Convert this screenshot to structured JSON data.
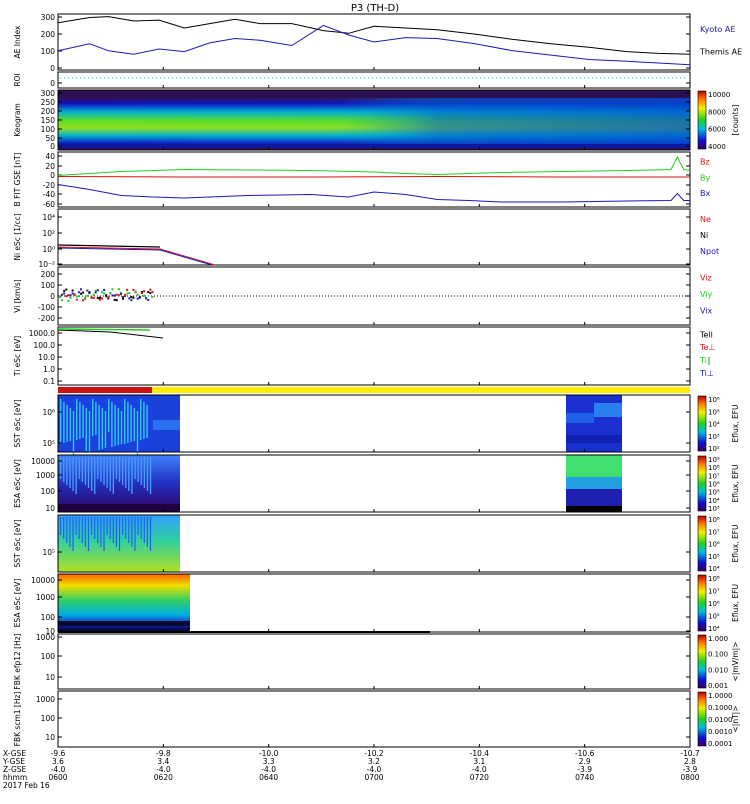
{
  "title": "P3 (TH-D)",
  "colors": {
    "black": "#000000",
    "blue": "#1a1ab8",
    "green": "#22cc22",
    "red": "#dd1111",
    "yellow": "#ffee00",
    "dkred": "#cc1111"
  },
  "chart_data": {
    "type": "line",
    "panels": [
      {
        "id": "ae",
        "ylabel": "AE Index",
        "yticks": [
          "0",
          "100",
          "200",
          "300"
        ],
        "ylim": [
          0,
          320
        ],
        "legend": [
          {
            "name": "Kyoto AE",
            "color": "#1a1ab8"
          },
          {
            "name": "Themis AE",
            "color": "#000000"
          }
        ],
        "series": [
          {
            "name": "Themis AE",
            "color": "#000000",
            "x": [
              0,
              0.05,
              0.08,
              0.12,
              0.16,
              0.2,
              0.24,
              0.28,
              0.32,
              0.37,
              0.42,
              0.46,
              0.5,
              0.55,
              0.6,
              0.66,
              0.72,
              0.78,
              0.84,
              0.9,
              0.95,
              1.0
            ],
            "y": [
              270,
              300,
              305,
              280,
              285,
              240,
              265,
              290,
              265,
              265,
              225,
              210,
              250,
              240,
              230,
              205,
              175,
              150,
              130,
              105,
              95,
              90
            ]
          },
          {
            "name": "Kyoto AE",
            "color": "#1a1ab8",
            "x": [
              0,
              0.05,
              0.08,
              0.12,
              0.16,
              0.2,
              0.24,
              0.28,
              0.32,
              0.37,
              0.42,
              0.46,
              0.5,
              0.55,
              0.6,
              0.66,
              0.72,
              0.78,
              0.84,
              0.9,
              0.95,
              1.0
            ],
            "y": [
              110,
              150,
              110,
              90,
              120,
              105,
              155,
              180,
              170,
              140,
              255,
              200,
              160,
              185,
              180,
              150,
              110,
              85,
              60,
              50,
              40,
              30
            ]
          }
        ]
      },
      {
        "id": "roi",
        "ylabel": "ROI",
        "yticks": [
          "0"
        ]
      },
      {
        "id": "keogram",
        "ylabel": "Keogram",
        "yticks": [
          "0",
          "50",
          "100",
          "150",
          "200",
          "250",
          "300"
        ],
        "colorbar": {
          "ticks": [
            "4000",
            "6000",
            "8000",
            "10000"
          ],
          "label": "[counts]"
        }
      },
      {
        "id": "bfield",
        "ylabel": "B FIT GSE [nT]",
        "yticks": [
          "-60",
          "-40",
          "-20",
          "0",
          "20",
          "40"
        ],
        "ylim": [
          -65,
          45
        ],
        "legend": [
          {
            "name": "Bz",
            "color": "#dd1111"
          },
          {
            "name": "By",
            "color": "#22cc22"
          },
          {
            "name": "Bx",
            "color": "#1a1ab8"
          }
        ],
        "series": [
          {
            "name": "By",
            "color": "#22cc22",
            "x": [
              0,
              0.1,
              0.2,
              0.3,
              0.4,
              0.5,
              0.55,
              0.6,
              0.7,
              0.8,
              0.9,
              0.97,
              0.98,
              0.99,
              1.0
            ],
            "y": [
              -2,
              6,
              10,
              9,
              8,
              5,
              2,
              0,
              4,
              6,
              8,
              10,
              35,
              10,
              8
            ]
          },
          {
            "name": "Bz",
            "color": "#dd1111",
            "x": [
              0,
              0.2,
              0.4,
              0.6,
              0.8,
              1.0
            ],
            "y": [
              -4,
              -5,
              -5,
              -4,
              -5,
              -5
            ]
          },
          {
            "name": "Bx",
            "color": "#1a1ab8",
            "x": [
              0,
              0.05,
              0.1,
              0.15,
              0.2,
              0.3,
              0.4,
              0.46,
              0.5,
              0.55,
              0.6,
              0.65,
              0.7,
              0.8,
              0.9,
              0.97,
              0.98,
              0.99,
              1.0
            ],
            "y": [
              -20,
              -30,
              -42,
              -45,
              -47,
              -42,
              -40,
              -45,
              -35,
              -40,
              -50,
              -52,
              -55,
              -55,
              -53,
              -52,
              -38,
              -52,
              -52
            ]
          }
        ]
      },
      {
        "id": "density",
        "ylabel": "Ni eSc [1/cc]",
        "yticks": [
          "10⁻²",
          "10⁰",
          "10²",
          "10⁴"
        ],
        "legend": [
          {
            "name": "Ne",
            "color": "#dd1111"
          },
          {
            "name": "Ni",
            "color": "#000000"
          },
          {
            "name": "Npot",
            "color": "#1a1ab8"
          }
        ]
      },
      {
        "id": "velocity",
        "ylabel": "Vi [km/s]",
        "yticks": [
          "-200",
          "-100",
          "0",
          "100",
          "200"
        ],
        "ylim": [
          -300,
          300
        ],
        "legend": [
          {
            "name": "Viz",
            "color": "#dd1111"
          },
          {
            "name": "Viy",
            "color": "#22cc22"
          },
          {
            "name": "Vix",
            "color": "#1a1ab8"
          }
        ]
      },
      {
        "id": "temperature",
        "ylabel": "Ti eSc [eV]",
        "yticks": [
          "0.1",
          "1.0",
          "10.0",
          "100.0",
          "1000.0"
        ],
        "legend": [
          {
            "name": "Tell",
            "color": "#000000"
          },
          {
            "name": "Te⊥",
            "color": "#dd1111"
          },
          {
            "name": "Ti∥",
            "color": "#22cc22"
          },
          {
            "name": "Ti⊥",
            "color": "#1a1ab8"
          }
        ]
      },
      {
        "id": "sst_e",
        "ylabel": "SST eSc [eV]",
        "yticks": [
          "10⁵",
          "10⁶"
        ],
        "colorbar": {
          "ticks": [
            "10²",
            "10³",
            "10⁴",
            "10⁵",
            "10⁶"
          ],
          "label": "Eflux, EFU"
        }
      },
      {
        "id": "esa_e",
        "ylabel": "ESA eSc [eV]",
        "yticks": [
          "10",
          "100",
          "1000",
          "10000"
        ],
        "colorbar": {
          "ticks": [
            "10³",
            "10⁴",
            "10⁵",
            "10⁶",
            "10⁷",
            "10⁸",
            "10⁹"
          ],
          "label": "Eflux, EFU"
        }
      },
      {
        "id": "sst_i",
        "ylabel": "SST eSc [eV]",
        "yticks": [
          "10⁵"
        ],
        "colorbar": {
          "ticks": [
            "10⁴",
            "10⁵",
            "10⁶",
            "10⁷",
            "10⁸"
          ],
          "label": "Eflux, EFU"
        }
      },
      {
        "id": "esa_i",
        "ylabel": "ESA eSc [eV]",
        "yticks": [
          "10",
          "100",
          "1000",
          "10000"
        ],
        "colorbar": {
          "ticks": [
            "10⁴",
            "10⁵",
            "10⁶",
            "10⁷",
            "10⁸"
          ],
          "label": "Eflux, EFU"
        }
      },
      {
        "id": "fbk1",
        "ylabel": "FBK efp12 [Hz]",
        "yticks": [
          "10",
          "100",
          "1000"
        ],
        "colorbar": {
          "ticks": [
            "0.001",
            "0.010",
            "0.100",
            "1.000"
          ],
          "label": "<|mV/m|>"
        }
      },
      {
        "id": "fbk2",
        "ylabel": "FBK scm1 [Hz]",
        "yticks": [
          "10",
          "100",
          "1000"
        ],
        "colorbar": {
          "ticks": [
            "0.0001",
            "0.0010",
            "0.0100",
            "0.1000",
            "1.0000"
          ],
          "label": "<|nT|>"
        }
      }
    ],
    "xaxis": {
      "row_labels": [
        "X-GSE",
        "Y-GSE",
        "Z-GSE",
        "hhmm",
        "2017 Feb 16"
      ],
      "ticks": [
        {
          "x": "-9.6",
          "y": "3.6",
          "z": "-4.0",
          "t": "0600"
        },
        {
          "x": "-9.8",
          "y": "3.4",
          "z": "-4.0",
          "t": "0620"
        },
        {
          "x": "-10.0",
          "y": "3.3",
          "z": "-4.0",
          "t": "0640"
        },
        {
          "x": "-10.2",
          "y": "3.2",
          "z": "-4.0",
          "t": "0700"
        },
        {
          "x": "-10.4",
          "y": "3.1",
          "z": "-4.0",
          "t": "0720"
        },
        {
          "x": "-10.6",
          "y": "2.9",
          "z": "-3.9",
          "t": "0740"
        },
        {
          "x": "-10.7",
          "y": "2.8",
          "z": "-3.9",
          "t": "0800"
        }
      ]
    }
  }
}
